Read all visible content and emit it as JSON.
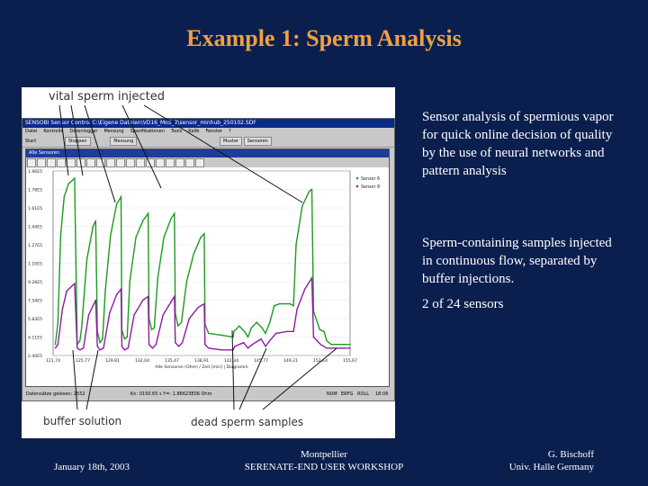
{
  "slide": {
    "title": "Example 1: Sperm Analysis",
    "body_paragraph_1": "Sensor analysis of spermious vapor for quick online decision of quality by the use of neural networks and pattern analysis",
    "body_paragraph_2": "Sperm-containing samples injected in continuous flow, separated by buffer injections.",
    "body_paragraph_3": "2 of 24 sensors",
    "footer_date": "January 18th, 2003",
    "footer_location": "Montpellier",
    "footer_workshop": "SERENATE-END USER WORKSHOP",
    "footer_author": "G. Bischoff",
    "footer_affiliation": "Univ. Halle Germany"
  },
  "annotations": {
    "top": "vital sperm injected",
    "bottom_left": "buffer solution",
    "bottom_right": "dead sperm samples"
  },
  "app": {
    "window_title": "SENSOBI Sensor Control   C:\\Eigene Dateien\\VD16_MoS_2\\sensor_minhub_250102.SDF",
    "menu": [
      "Datei",
      "Kontrolle",
      "Datenlogger",
      "Messung",
      "Spezifikationen",
      "Tools",
      "Kalib",
      "Fenster",
      "?"
    ],
    "toolbar_start": "Start",
    "toolbar_stop": "Stoppen",
    "toolbar_field": "Messung",
    "button_muster": "Muster",
    "button_sensoren": "Sensoren",
    "inner_title": "Alle Sensoren",
    "status_left": "Datensätze gelesen: 2552",
    "status_mid": "Kn: 0150.65 s  Y=: 1.86623E06 Ohm",
    "status_right_1": "NUM",
    "status_right_2": "ERFG",
    "status_right_3": "ROLL",
    "status_right_4": "18:06"
  },
  "chart_data": {
    "type": "line",
    "xlabel": "Alle Sensoren (Ohm) / Zeit [min] | Diagramm",
    "ylabel": "",
    "y_tick_labels": [
      "1.96E5",
      "1.78E5",
      "1.61E5",
      "1.44E5",
      "1.27E5",
      "1.10E5",
      "9.26E5",
      "7.54E5",
      "5.83E5",
      "4.11E5",
      "2.40E5"
    ],
    "x_tick_labels": [
      "121,74",
      "125,77",
      "129,81",
      "132,04",
      "135,47",
      "138,91",
      "142,34",
      "145,77",
      "149,21",
      "152,64",
      "155,67"
    ],
    "xlim": [
      121.74,
      155.67
    ],
    "ylim": [
      0,
      10
    ],
    "legend_position": "top-right",
    "legend": [
      "Sensor 6",
      "Sensor 8"
    ],
    "colors": {
      "series1": "#1e9a1e",
      "series2": "#8a1ea0"
    },
    "series": [
      {
        "name": "Sensor 6",
        "color": "#1e9a1e",
        "points": [
          [
            122.0,
            0.6
          ],
          [
            122.3,
            1.8
          ],
          [
            122.6,
            6.5
          ],
          [
            123.0,
            8.6
          ],
          [
            123.5,
            9.3
          ],
          [
            124.2,
            9.6
          ],
          [
            124.5,
            0.6
          ],
          [
            124.8,
            0.8
          ],
          [
            125.0,
            1.5
          ],
          [
            125.6,
            5.2
          ],
          [
            126.3,
            7.0
          ],
          [
            126.6,
            7.3
          ],
          [
            126.8,
            1.3
          ],
          [
            127.1,
            0.7
          ],
          [
            127.4,
            0.9
          ],
          [
            127.7,
            3.5
          ],
          [
            128.3,
            6.5
          ],
          [
            129.0,
            8.2
          ],
          [
            129.5,
            8.6
          ],
          [
            129.6,
            1.4
          ],
          [
            129.9,
            0.9
          ],
          [
            130.2,
            1.0
          ],
          [
            130.5,
            4.0
          ],
          [
            131.2,
            6.4
          ],
          [
            132.0,
            7.3
          ],
          [
            132.6,
            7.7
          ],
          [
            132.7,
            2.0
          ],
          [
            133.0,
            1.4
          ],
          [
            133.3,
            1.5
          ],
          [
            133.7,
            4.2
          ],
          [
            134.4,
            6.4
          ],
          [
            135.2,
            7.4
          ],
          [
            135.6,
            7.7
          ],
          [
            135.7,
            2.3
          ],
          [
            136.0,
            1.6
          ],
          [
            136.4,
            1.8
          ],
          [
            137.0,
            4.0
          ],
          [
            137.8,
            5.5
          ],
          [
            138.6,
            6.4
          ],
          [
            139.0,
            6.6
          ],
          [
            139.1,
            1.7
          ],
          [
            139.5,
            1.2
          ],
          [
            141.0,
            1.1
          ],
          [
            142.3,
            1.0
          ],
          [
            142.4,
            1.3
          ],
          [
            143.0,
            1.6
          ],
          [
            143.6,
            1.3
          ],
          [
            144.0,
            1.0
          ],
          [
            144.4,
            1.5
          ],
          [
            145.0,
            1.8
          ],
          [
            145.6,
            1.5
          ],
          [
            146.0,
            1.2
          ],
          [
            146.5,
            1.8
          ],
          [
            147.0,
            2.7
          ],
          [
            147.6,
            2.8
          ],
          [
            148.2,
            2.8
          ],
          [
            148.8,
            2.8
          ],
          [
            149.2,
            2.7
          ],
          [
            149.5,
            6.0
          ],
          [
            150.2,
            8.1
          ],
          [
            151.0,
            8.9
          ],
          [
            151.3,
            9.0
          ],
          [
            151.5,
            2.4
          ],
          [
            152.2,
            1.4
          ],
          [
            152.7,
            1.3
          ],
          [
            153.0,
            0.8
          ],
          [
            153.5,
            0.6
          ],
          [
            155.0,
            0.6
          ],
          [
            155.67,
            0.6
          ]
        ]
      },
      {
        "name": "Sensor 8",
        "color": "#8a1ea0",
        "points": [
          [
            122.0,
            0.4
          ],
          [
            122.3,
            0.6
          ],
          [
            122.8,
            2.5
          ],
          [
            123.3,
            3.5
          ],
          [
            124.2,
            3.9
          ],
          [
            124.5,
            0.4
          ],
          [
            124.8,
            0.3
          ],
          [
            125.2,
            0.4
          ],
          [
            125.8,
            2.2
          ],
          [
            126.6,
            3.0
          ],
          [
            126.8,
            0.5
          ],
          [
            127.1,
            0.3
          ],
          [
            127.5,
            0.4
          ],
          [
            128.2,
            2.3
          ],
          [
            129.0,
            3.3
          ],
          [
            129.5,
            3.6
          ],
          [
            129.6,
            0.5
          ],
          [
            129.9,
            0.3
          ],
          [
            130.3,
            0.4
          ],
          [
            131.0,
            2.2
          ],
          [
            132.0,
            3.0
          ],
          [
            132.6,
            3.2
          ],
          [
            132.7,
            0.6
          ],
          [
            133.1,
            0.4
          ],
          [
            133.5,
            0.6
          ],
          [
            134.3,
            2.2
          ],
          [
            135.2,
            2.9
          ],
          [
            135.6,
            3.2
          ],
          [
            135.7,
            0.7
          ],
          [
            136.1,
            0.5
          ],
          [
            136.5,
            0.7
          ],
          [
            137.3,
            2.0
          ],
          [
            138.3,
            2.6
          ],
          [
            139.0,
            2.8
          ],
          [
            139.1,
            0.6
          ],
          [
            139.5,
            0.4
          ],
          [
            141.0,
            0.3
          ],
          [
            142.3,
            0.3
          ],
          [
            142.5,
            0.5
          ],
          [
            143.5,
            0.7
          ],
          [
            144.0,
            0.4
          ],
          [
            144.5,
            0.6
          ],
          [
            145.5,
            0.9
          ],
          [
            146.0,
            0.5
          ],
          [
            146.5,
            0.8
          ],
          [
            147.2,
            1.2
          ],
          [
            148.5,
            1.3
          ],
          [
            149.2,
            1.3
          ],
          [
            149.6,
            2.5
          ],
          [
            150.5,
            3.6
          ],
          [
            151.3,
            4.2
          ],
          [
            151.5,
            1.0
          ],
          [
            152.3,
            0.6
          ],
          [
            153.0,
            0.4
          ],
          [
            155.0,
            0.4
          ],
          [
            155.67,
            0.4
          ]
        ]
      }
    ]
  }
}
